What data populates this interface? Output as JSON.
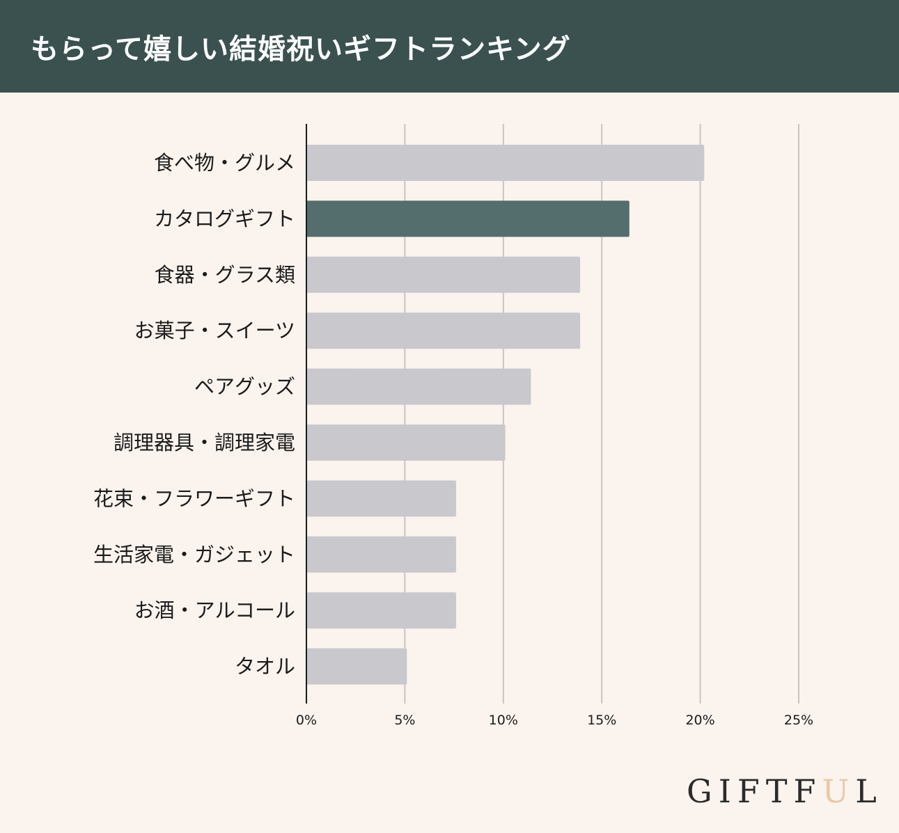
{
  "header": {
    "title": "もらって嬉しい結婚祝いギフトランキング"
  },
  "chart_data": {
    "type": "bar",
    "orientation": "horizontal",
    "categories": [
      "食べ物・グルメ",
      "カタログギフト",
      "食器・グラス類",
      "お菓子・スイーツ",
      "ペアグッズ",
      "調理器具・調理家電",
      "花束・フラワーギフト",
      "生活家電・ガジェット",
      "お酒・アルコール",
      "タオル"
    ],
    "values": [
      20.2,
      16.4,
      13.9,
      13.9,
      11.4,
      10.1,
      7.6,
      7.6,
      7.6,
      5.1
    ],
    "x_ticks": [
      "0%",
      "5%",
      "10%",
      "15%",
      "20%",
      "25%"
    ],
    "xlim": [
      0,
      25
    ],
    "grid": "vertical",
    "highlight_index": 1,
    "colors": {
      "bar": "#c9c8cc",
      "highlight": "#546e6d",
      "grid": "#c9c4c3",
      "axis": "#1b1b1b"
    }
  },
  "logo": {
    "text": "GIFTFUL",
    "main": "GIFTF",
    "accent": "U",
    "tail": "L",
    "accent_color": "#e9c9a6"
  }
}
